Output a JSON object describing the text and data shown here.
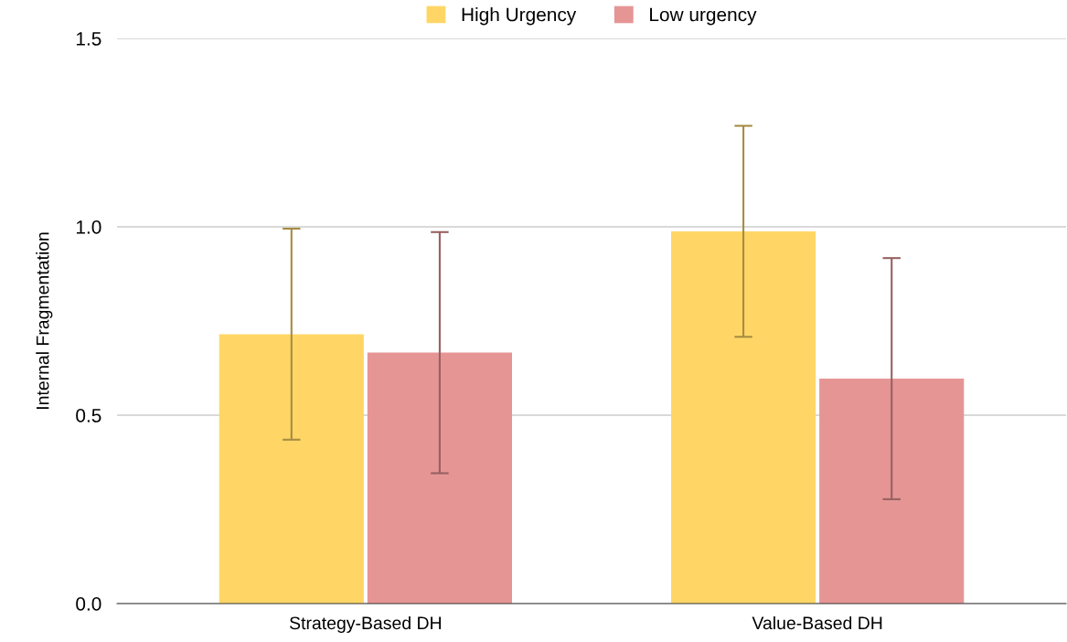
{
  "chart_data": {
    "type": "bar",
    "ylabel": "Internal Fragmentation",
    "categories": [
      "Strategy-Based DH",
      "Value-Based DH"
    ],
    "series": [
      {
        "name": "High Urgency",
        "color": "#ffd666",
        "values": [
          0.715,
          0.988
        ],
        "errors": [
          0.28,
          0.28
        ]
      },
      {
        "name": "Low urgency",
        "color": "#e69595",
        "values": [
          0.666,
          0.597
        ],
        "errors": [
          0.32,
          0.32
        ]
      }
    ],
    "ylim": [
      0,
      1.5
    ],
    "yticks": [
      {
        "value": 0,
        "label": "0.0"
      },
      {
        "value": 0.5,
        "label": "0.5"
      },
      {
        "value": 1.0,
        "label": "1.0"
      },
      {
        "value": 1.5,
        "label": "1.5"
      }
    ],
    "grid": "y",
    "legend": "top"
  }
}
